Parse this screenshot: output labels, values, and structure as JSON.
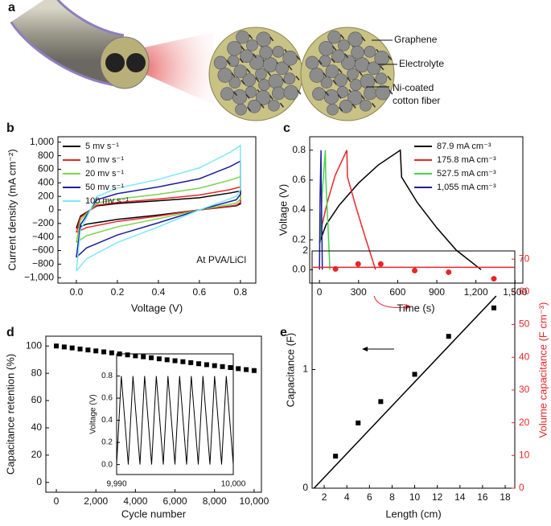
{
  "illustration": {
    "label": "a",
    "annotations": [
      "Graphene",
      "Electrolyte",
      "Ni-coated",
      "cotton fiber"
    ]
  },
  "chart_data": [
    {
      "type": "line",
      "panel_label": "b",
      "xlabel": "Voltage (V)",
      "ylabel": "Current density (mA cm⁻²)",
      "annotation": "At PVA/LiCl",
      "legend_position": "upper left",
      "xlim": [
        -0.09,
        0.875
      ],
      "ylim": [
        -1080,
        1080
      ],
      "xticks": [
        {
          "value": 0,
          "label": "0.0"
        },
        0.2,
        0.4,
        0.6,
        0.8
      ],
      "yticks": [
        {
          "value": -1000,
          "label": "−1,000"
        },
        {
          "value": -800,
          "label": "−800"
        },
        {
          "value": -600,
          "label": "−600"
        },
        {
          "value": -400,
          "label": "−400"
        },
        {
          "value": -200,
          "label": "−200"
        },
        0,
        200,
        400,
        600,
        800,
        {
          "value": 1000,
          "label": "1,000"
        }
      ],
      "x": [
        0,
        0.02,
        0.1,
        0.2,
        0.4,
        0.6,
        0.75,
        0.8,
        0.8,
        0.78,
        0.6,
        0.4,
        0.2,
        0.05,
        0
      ],
      "series": [
        {
          "name": "5 mv s⁻¹",
          "color": "#000000",
          "values": [
            -270,
            -90,
            60,
            95,
            135,
            180,
            250,
            280,
            90,
            60,
            0,
            -75,
            -140,
            -210,
            -270
          ]
        },
        {
          "name": "10 mv s⁻¹",
          "color": "#e8262a",
          "values": [
            -330,
            -110,
            70,
            110,
            160,
            220,
            300,
            340,
            110,
            70,
            0,
            -90,
            -170,
            -260,
            -330
          ]
        },
        {
          "name": "20 mv s⁻¹",
          "color": "#7bd44f",
          "values": [
            -480,
            -150,
            100,
            160,
            230,
            320,
            440,
            490,
            160,
            100,
            0,
            -130,
            -250,
            -380,
            -480
          ]
        },
        {
          "name": "50 mv s⁻¹",
          "color": "#1d1d9c",
          "values": [
            -700,
            -220,
            150,
            240,
            340,
            460,
            640,
            720,
            230,
            150,
            0,
            -190,
            -370,
            -560,
            -700
          ]
        },
        {
          "name": "100 mv s⁻¹",
          "color": "#7fe6f3",
          "values": [
            -900,
            -300,
            200,
            320,
            450,
            620,
            850,
            950,
            300,
            200,
            0,
            -250,
            -480,
            -720,
            -900
          ]
        }
      ]
    },
    {
      "type": "line",
      "panel_label": "c",
      "xlabel": "Time (s)",
      "ylabel": "Voltage (V)",
      "legend_position": "upper right",
      "xlim": [
        -75,
        1560
      ],
      "ylim": [
        -0.09,
        0.89
      ],
      "xticks": [
        0,
        300,
        600,
        900,
        {
          "value": 1200,
          "label": "1,200"
        },
        {
          "value": 1500,
          "label": "1,500"
        }
      ],
      "yticks": [
        {
          "value": 0,
          "label": "0.0"
        },
        0.2,
        0.4,
        0.6,
        0.8
      ],
      "series": [
        {
          "name": "87.9 mA cm⁻³",
          "color": "#000000",
          "x": [
            0,
            50,
            150,
            300,
            450,
            620,
            630,
            750,
            900,
            1050,
            1240
          ],
          "values": [
            0.18,
            0.3,
            0.43,
            0.58,
            0.7,
            0.8,
            0.62,
            0.45,
            0.28,
            0.13,
            0
          ]
        },
        {
          "name": "175.8 mA cm⁻³",
          "color": "#e8262a",
          "x": [
            0,
            20,
            60,
            120,
            210,
            215,
            280,
            350,
            430
          ],
          "values": [
            0.18,
            0.3,
            0.45,
            0.63,
            0.8,
            0.62,
            0.42,
            0.22,
            0
          ]
        },
        {
          "name": "527.5 mA cm⁻³",
          "color": "#46d44a",
          "x": [
            5,
            20,
            45,
            48,
            65,
            80
          ],
          "values": [
            0.18,
            0.5,
            0.8,
            0.62,
            0.3,
            0
          ]
        },
        {
          "name": "1,055 mA cm⁻³",
          "color": "#1d1d9c",
          "x": [
            0,
            5,
            12,
            13,
            18,
            22
          ],
          "values": [
            0,
            0.5,
            0.8,
            0.6,
            0.3,
            0
          ]
        }
      ]
    },
    {
      "type": "scatter",
      "panel_label": "d",
      "xlabel": "Cycle number",
      "ylabel": "Capacitance retention (%)",
      "marker": "square",
      "color": "#000000",
      "xlim": [
        -530,
        10370
      ],
      "ylim": [
        -7.2,
        107.2
      ],
      "xticks": [
        0,
        {
          "value": 2000,
          "label": "2,000"
        },
        {
          "value": 4000,
          "label": "4,000"
        },
        {
          "value": 6000,
          "label": "6,000"
        },
        {
          "value": 8000,
          "label": "8,000"
        },
        {
          "value": 10000,
          "label": "10,000"
        }
      ],
      "yticks": [
        0,
        20,
        40,
        60,
        80,
        100
      ],
      "x": [
        0,
        400,
        800,
        1200,
        1600,
        2000,
        2400,
        2800,
        3200,
        3600,
        4000,
        4400,
        4800,
        5200,
        5600,
        6000,
        6400,
        6800,
        7200,
        7600,
        8000,
        8400,
        8800,
        9200,
        9600,
        10000
      ],
      "values": [
        100,
        99.3,
        98.6,
        97.8,
        97.1,
        96.4,
        95.7,
        95,
        94.2,
        93.5,
        92.8,
        92.1,
        91.4,
        90.6,
        89.9,
        89.2,
        88.5,
        87.8,
        87,
        86.3,
        85.6,
        84.9,
        84.2,
        83.4,
        82.7,
        82
      ]
    },
    {
      "type": "line",
      "ylabel": "Voltage (V)",
      "color": "#000000",
      "xlim": [
        9990,
        10000
      ],
      "ylim": [
        -0.09,
        1.0
      ],
      "xticks": [
        {
          "value": 9990,
          "label": "9,990"
        },
        {
          "value": 10000,
          "label": "10,000"
        }
      ],
      "yticks": [
        {
          "value": 0,
          "label": "0.0"
        },
        0.2,
        0.4,
        0.6,
        0.8
      ],
      "x": [
        9990,
        9990.4,
        9991,
        9991.4,
        9992,
        9992.4,
        9993,
        9993.4,
        9994,
        9994.4,
        9995,
        9995.4,
        9996,
        9996.4,
        9997,
        9997.4,
        9998,
        9998.4,
        9999,
        9999.4,
        10000
      ],
      "values": [
        0,
        0.8,
        0,
        0.8,
        0,
        0.8,
        0,
        0.8,
        0,
        0.8,
        0,
        0.8,
        0,
        0.8,
        0,
        0.8,
        0,
        0.8,
        0,
        0.8,
        0
      ]
    },
    {
      "type": "scatter",
      "panel_label": "e",
      "xlabel": "Length (cm)",
      "ylabel": "Capacitance (F)",
      "y2label": "Volume capacitance (F cm⁻³)",
      "y2color": "#e8262a",
      "xlim": [
        0.93,
        18.85
      ],
      "ylim": [
        0,
        2
      ],
      "y2lim": [
        0,
        72.5
      ],
      "xticks": [
        2,
        4,
        6,
        8,
        10,
        12,
        14,
        16,
        18
      ],
      "yticks": [
        0,
        1,
        2
      ],
      "y2ticks": [
        0,
        10,
        20,
        30,
        40,
        50,
        60,
        70
      ],
      "series": [
        {
          "type": "scatter",
          "marker": "square",
          "color": "#000000",
          "x": [
            3,
            5,
            7,
            10,
            13,
            17
          ],
          "values": [
            0.27,
            0.55,
            0.73,
            0.96,
            1.28,
            1.52
          ]
        },
        {
          "type": "scatter",
          "marker": "circle",
          "color": "#e8262a",
          "axis": "y2",
          "x": [
            3,
            5,
            7,
            10,
            13,
            17
          ],
          "values": [
            67,
            68.5,
            68.5,
            66.5,
            66,
            64
          ]
        },
        {
          "type": "line",
          "color": "#000000",
          "x": [
            1.1,
            17.2
          ],
          "values": [
            0,
            1.62
          ]
        },
        {
          "type": "line",
          "color": "#e8262a",
          "axis": "y2",
          "x": [
            1,
            18.8
          ],
          "values": [
            67.5,
            67.5
          ]
        }
      ]
    }
  ]
}
